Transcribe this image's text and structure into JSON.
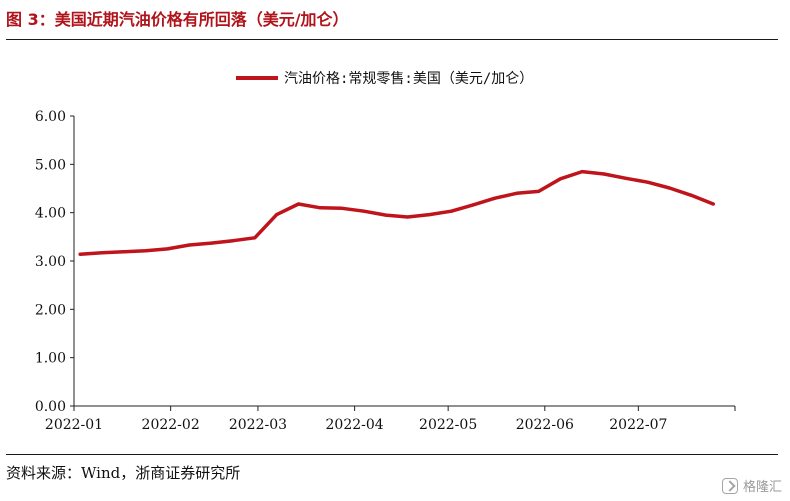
{
  "figure": {
    "title": "图 3：美国近期汽油价格有所回落（美元/加仑）",
    "source": "资料来源：Wind，浙商证券研究所",
    "watermark": "格隆汇"
  },
  "chart_data": {
    "type": "line",
    "title": "",
    "xlabel": "",
    "ylabel": "",
    "ylim": [
      0,
      6
    ],
    "yticks": [
      "0.00",
      "1.00",
      "2.00",
      "3.00",
      "4.00",
      "5.00",
      "6.00"
    ],
    "xticks": [
      "2022-01",
      "2022-02",
      "2022-03",
      "2022-04",
      "2022-05",
      "2022-06",
      "2022-07"
    ],
    "x": [
      "2022-01-03",
      "2022-01-10",
      "2022-01-17",
      "2022-01-24",
      "2022-01-31",
      "2022-02-07",
      "2022-02-14",
      "2022-02-21",
      "2022-02-28",
      "2022-03-07",
      "2022-03-14",
      "2022-03-21",
      "2022-03-28",
      "2022-04-04",
      "2022-04-11",
      "2022-04-18",
      "2022-04-25",
      "2022-05-02",
      "2022-05-09",
      "2022-05-16",
      "2022-05-23",
      "2022-05-30",
      "2022-06-06",
      "2022-06-13",
      "2022-06-20",
      "2022-06-27",
      "2022-07-04",
      "2022-07-11",
      "2022-07-18",
      "2022-07-25"
    ],
    "series": [
      {
        "name": "汽油价格:常规零售:美国（美元/加仑）",
        "color": "#c0141c",
        "values": [
          3.14,
          3.17,
          3.19,
          3.21,
          3.25,
          3.33,
          3.37,
          3.42,
          3.48,
          3.96,
          4.18,
          4.1,
          4.09,
          4.03,
          3.95,
          3.91,
          3.96,
          4.03,
          4.16,
          4.3,
          4.4,
          4.44,
          4.7,
          4.85,
          4.8,
          4.71,
          4.63,
          4.51,
          4.36,
          4.18
        ]
      }
    ],
    "legend_position": "top-center",
    "grid": false
  }
}
